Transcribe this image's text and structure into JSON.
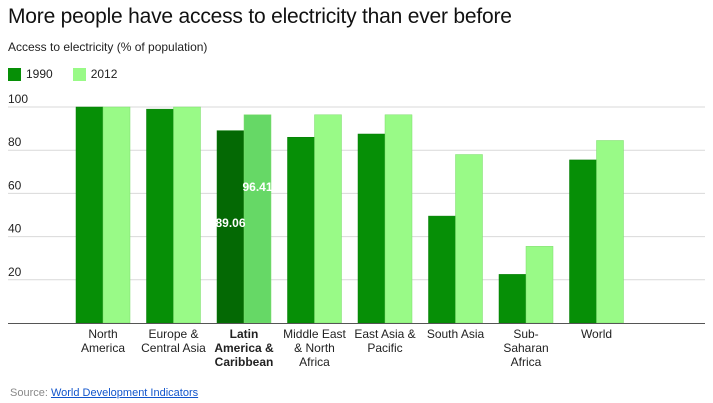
{
  "title": "More people have access to electricity than ever before",
  "colors": {
    "series_1990": "#068f06",
    "series_2012": "#99fa87",
    "highlight_1990": "#046904",
    "highlight_2012": "#66d866",
    "grid": "#d9d9d9",
    "axis": "#555555"
  },
  "source": {
    "prefix": "Source: ",
    "link_text": "World Development Indicators"
  },
  "chart_data": {
    "type": "bar",
    "ylabel": "Access to electricity (% of population)",
    "xlabel": "",
    "ylim": [
      0,
      100
    ],
    "yticks": [
      20,
      40,
      60,
      80,
      100
    ],
    "grid": true,
    "legend_position": "top-left",
    "categories": [
      [
        "North",
        "America"
      ],
      [
        "Europe &",
        "Central Asia"
      ],
      [
        "Latin",
        "America &",
        "Caribbean"
      ],
      [
        "Middle East",
        "& North",
        "Africa"
      ],
      [
        "East Asia &",
        "Pacific"
      ],
      [
        "South Asia"
      ],
      [
        "Sub-",
        "Saharan",
        "Africa"
      ],
      [
        "World"
      ]
    ],
    "highlighted_category_index": 2,
    "series": [
      {
        "name": "1990",
        "values": [
          100,
          99,
          89.06,
          86,
          87.5,
          49.5,
          22.5,
          75.5
        ]
      },
      {
        "name": "2012",
        "values": [
          100,
          100,
          96.41,
          96.4,
          96.4,
          78,
          35.5,
          84.5
        ]
      }
    ],
    "data_labels": [
      {
        "category_index": 2,
        "series_index": 0,
        "text": "89.06"
      },
      {
        "category_index": 2,
        "series_index": 1,
        "text": "96.41"
      }
    ]
  }
}
